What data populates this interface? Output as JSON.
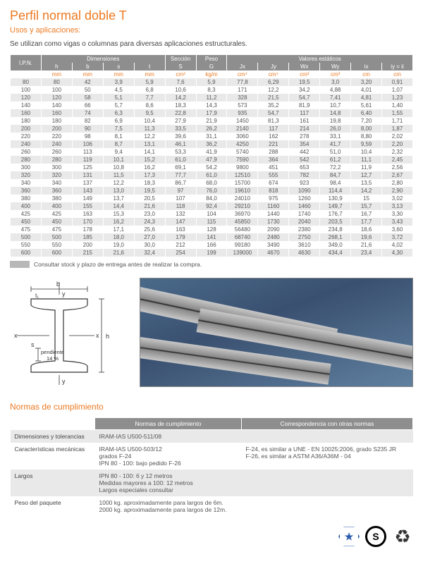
{
  "title": "Perfil normal doble T",
  "subtitle": "Usos y aplicaciones:",
  "intro": "Se utilizan como vigas o columnas para diversas aplicaciones estructurales.",
  "diagram": {
    "labels": {
      "b": "b",
      "t1": "t₁",
      "y": "y",
      "x": "x",
      "s": "s",
      "h": "h",
      "pendiente": "pendiente\n14 %"
    }
  },
  "colors": {
    "accent": "#ec7a23",
    "header_bg": "#8e8e8e",
    "row_alt": "#e9e9e9"
  },
  "table": {
    "col_ipn": "I.P.N.",
    "group_dim": "Dimensiones",
    "group_sec": "Sección",
    "group_peso": "Peso",
    "group_val": "Valores estáticos",
    "sub": [
      "h",
      "b",
      "s",
      "t",
      "S",
      "G",
      "Jx",
      "Jy",
      "Wx",
      "Wy",
      "ix",
      "iy = ii"
    ],
    "units": [
      "mm",
      "mm",
      "mm",
      "mm",
      "cm²",
      "kg/m",
      "cm⁴",
      "cm⁴",
      "cm³",
      "cm³",
      "cm",
      "cm"
    ],
    "rows": [
      [
        "80",
        "80",
        "42",
        "3,9",
        "5,9",
        "7,6",
        "5,9",
        "77,8",
        "6,29",
        "19,5",
        "3,0",
        "3,20",
        "0,91"
      ],
      [
        "100",
        "100",
        "50",
        "4,5",
        "6,8",
        "10,6",
        "8,3",
        "171",
        "12,2",
        "34,2",
        "4,88",
        "4,01",
        "1,07"
      ],
      [
        "120",
        "120",
        "58",
        "5,1",
        "7,7",
        "14,2",
        "11,2",
        "328",
        "21,5",
        "54,7",
        "7,41",
        "4,81",
        "1,23"
      ],
      [
        "140",
        "140",
        "66",
        "5,7",
        "8,6",
        "18,3",
        "14,3",
        "573",
        "35,2",
        "81,9",
        "10,7",
        "5,61",
        "1,40"
      ],
      [
        "160",
        "160",
        "74",
        "6,3",
        "9,5",
        "22,8",
        "17,9",
        "935",
        "54,7",
        "117",
        "14,8",
        "6,40",
        "1,55"
      ],
      [
        "180",
        "180",
        "82",
        "6,9",
        "10,4",
        "27,9",
        "21,9",
        "1450",
        "81,3",
        "161",
        "19,8",
        "7,20",
        "1,71"
      ],
      [
        "200",
        "200",
        "90",
        "7,5",
        "11,3",
        "33,5",
        "26,2",
        "2140",
        "117",
        "214",
        "26,0",
        "8,00",
        "1,87"
      ],
      [
        "220",
        "220",
        "98",
        "8,1",
        "12,2",
        "39,6",
        "31,1",
        "3060",
        "162",
        "278",
        "33,1",
        "8,80",
        "2,02"
      ],
      [
        "240",
        "240",
        "106",
        "8,7",
        "13,1",
        "46,1",
        "36,2",
        "4250",
        "221",
        "354",
        "41,7",
        "9,59",
        "2,20"
      ],
      [
        "260",
        "260",
        "113",
        "9,4",
        "14,1",
        "53,3",
        "41,9",
        "5740",
        "288",
        "442",
        "51,0",
        "10,4",
        "2,32"
      ],
      [
        "280",
        "280",
        "119",
        "10,1",
        "15,2",
        "61,0",
        "47,9",
        "7590",
        "364",
        "542",
        "61,2",
        "11,1",
        "2,45"
      ],
      [
        "300",
        "300",
        "125",
        "10,8",
        "16,2",
        "69,1",
        "54,2",
        "9800",
        "451",
        "653",
        "72,2",
        "11,9",
        "2,56"
      ],
      [
        "320",
        "320",
        "131",
        "11,5",
        "17,3",
        "77,7",
        "61,0",
        "12510",
        "555",
        "782",
        "84,7",
        "12,7",
        "2,67"
      ],
      [
        "340",
        "340",
        "137",
        "12,2",
        "18,3",
        "86,7",
        "68,0",
        "15700",
        "674",
        "923",
        "98,4",
        "13,5",
        "2,80"
      ],
      [
        "360",
        "360",
        "143",
        "13,0",
        "19,5",
        "97",
        "76,0",
        "19610",
        "818",
        "1090",
        "114,4",
        "14,2",
        "2,90"
      ],
      [
        "380",
        "380",
        "149",
        "13,7",
        "20,5",
        "107",
        "84,0",
        "24010",
        "975",
        "1260",
        "130,9",
        "15",
        "3,02"
      ],
      [
        "400",
        "400",
        "155",
        "14,4",
        "21,6",
        "118",
        "92,4",
        "29210",
        "1160",
        "1460",
        "149,7",
        "15,7",
        "3,13"
      ],
      [
        "425",
        "425",
        "163",
        "15,3",
        "23,0",
        "132",
        "104",
        "36970",
        "1440",
        "1740",
        "176,7",
        "16,7",
        "3,30"
      ],
      [
        "450",
        "450",
        "170",
        "16,2",
        "24,3",
        "147",
        "115",
        "45850",
        "1730",
        "2040",
        "203,5",
        "17,7",
        "3,43"
      ],
      [
        "475",
        "475",
        "178",
        "17,1",
        "25,6",
        "163",
        "128",
        "56480",
        "2090",
        "2380",
        "234,8",
        "18,6",
        "3,60"
      ],
      [
        "500",
        "500",
        "185",
        "18,0",
        "27,0",
        "179",
        "141",
        "68740",
        "2480",
        "2750",
        "268,1",
        "19,6",
        "3,72"
      ],
      [
        "550",
        "550",
        "200",
        "19,0",
        "30,0",
        "212",
        "166",
        "99180",
        "3490",
        "3610",
        "349,0",
        "21,6",
        "4,02"
      ],
      [
        "600",
        "600",
        "215",
        "21,6",
        "32,4",
        "254",
        "199",
        "139000",
        "4670",
        "4630",
        "434,4",
        "23,4",
        "4,30"
      ]
    ]
  },
  "footnote": "Consultar stock y plazo de entrega antes de realizar la compra.",
  "normas_title": "Normas de cumplimiento",
  "norms": {
    "headers": [
      "Normas de cumplimiento",
      "Correspondencia con otras normas"
    ],
    "rows": [
      {
        "label": "Dimensiones y tolerancias",
        "c1": "IRAM-IAS U500-511/08",
        "c2": ""
      },
      {
        "label": "Características mecánicas",
        "c1": "IRAM-IAS U500-503/12\ngrados F-24\nIPN 80 - 100: bajo pedido F-26",
        "c2": "F-24, es similar a UNE - EN 10025:2006, grado S235 JR\nF-26, es similar a ASTM A36/A36M - 04"
      },
      {
        "label": "Largos",
        "c1": "IPN 80 - 100: 6 y 12 metros\nMedidas mayores a 100: 12 metros\nLargos especiales consultar",
        "c2": ""
      },
      {
        "label": "Peso del paquete",
        "c1": "1000 kg. aproximadamente para largos de 6m.\n2000 kg. aproximadamente para largos de 12m.",
        "c2": ""
      }
    ]
  },
  "logos": {
    "hex": "★",
    "circle": "S",
    "recycle": "♻"
  }
}
